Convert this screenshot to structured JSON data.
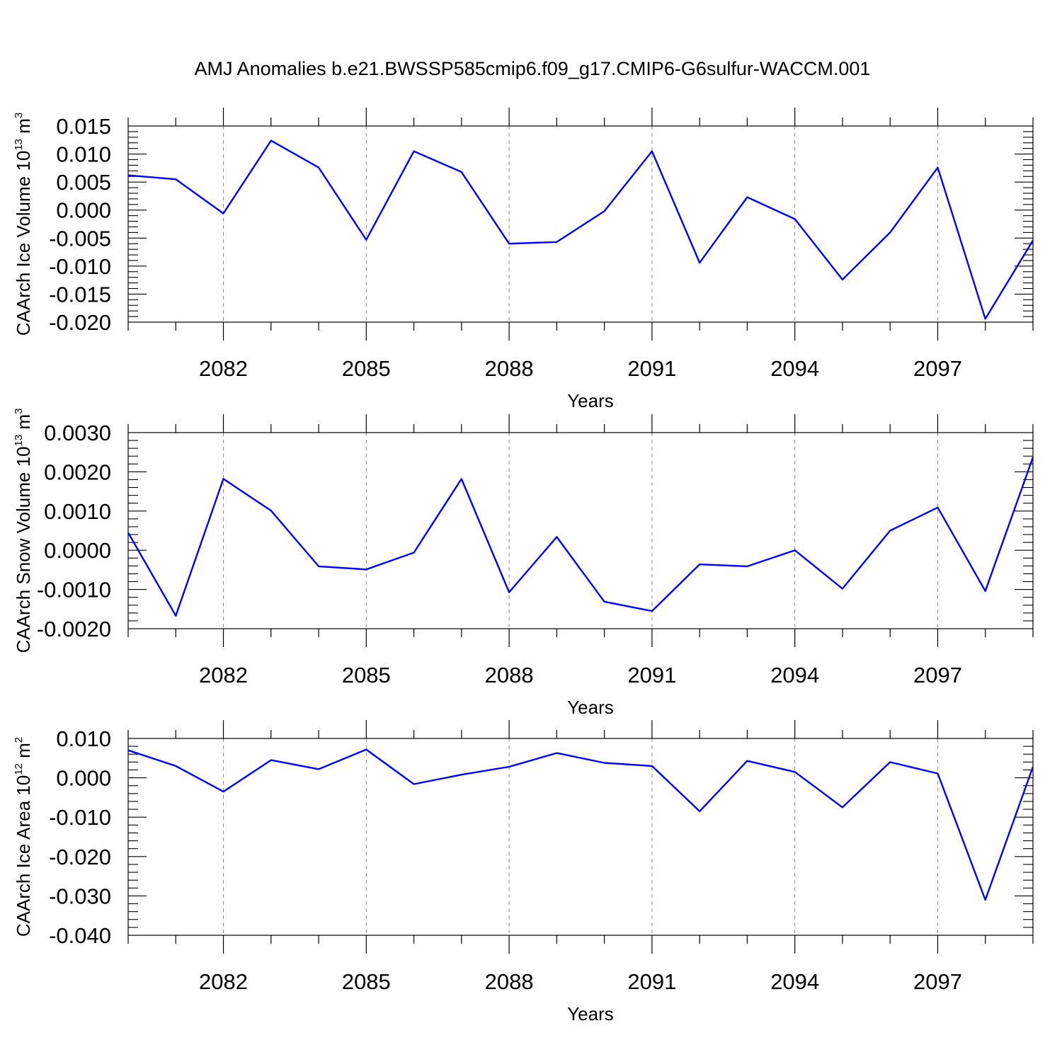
{
  "figure_title": "AMJ Anomalies b.e21.BWSSP585cmip6.f09_g17.CMIP6-G6sulfur-WACCM.001",
  "colors": {
    "line": "#0000ff",
    "axis": "#000000",
    "grid": "#888888",
    "background": "#ffffff"
  },
  "chart_data": [
    {
      "type": "line",
      "xlabel": "Years",
      "ylabel": {
        "text": "CAArch Ice Volume 10",
        "sup1": "13",
        "unit": " m",
        "sup2": "3"
      },
      "xlim": [
        2080,
        2099
      ],
      "ylim": [
        -0.02,
        0.015
      ],
      "ytick_values": [
        -0.02,
        -0.015,
        -0.01,
        -0.005,
        0,
        0.005,
        0.01,
        0.015
      ],
      "ytick_labels": [
        "-0.020",
        "-0.015",
        "-0.010",
        "-0.005",
        "0.000",
        "0.005",
        "0.010",
        "0.015"
      ],
      "xtick_values": [
        2082,
        2085,
        2088,
        2091,
        2094,
        2097
      ],
      "xtick_labels": [
        "2082",
        "2085",
        "2088",
        "2091",
        "2094",
        "2097"
      ],
      "grid": "vertical dashed at major x ticks",
      "x": [
        2080,
        2081,
        2082,
        2083,
        2084,
        2085,
        2086,
        2087,
        2088,
        2089,
        2090,
        2091,
        2092,
        2093,
        2094,
        2095,
        2096,
        2097,
        2098,
        2099
      ],
      "series": [
        {
          "values": [
            0.0062,
            0.0055,
            -0.0006,
            0.0124,
            0.0076,
            -0.0053,
            0.0105,
            0.0068,
            -0.006,
            -0.0057,
            -0.0002,
            0.0105,
            -0.0094,
            0.0023,
            -0.0016,
            -0.0124,
            -0.004,
            0.0076,
            -0.0194,
            -0.0054
          ]
        }
      ]
    },
    {
      "type": "line",
      "xlabel": "Years",
      "ylabel": {
        "text": "CAArch Snow Volume 10",
        "sup1": "13",
        "unit": " m",
        "sup2": "3"
      },
      "xlim": [
        2080,
        2099
      ],
      "ylim": [
        -0.002,
        0.003
      ],
      "ytick_values": [
        -0.002,
        -0.001,
        0,
        0.001,
        0.002,
        0.003
      ],
      "ytick_labels": [
        "-0.0020",
        "-0.0010",
        "0.0000",
        "0.0010",
        "0.0020",
        "0.0030"
      ],
      "xtick_values": [
        2082,
        2085,
        2088,
        2091,
        2094,
        2097
      ],
      "xtick_labels": [
        "2082",
        "2085",
        "2088",
        "2091",
        "2094",
        "2097"
      ],
      "grid": "vertical dashed at major x ticks",
      "x": [
        2080,
        2081,
        2082,
        2083,
        2084,
        2085,
        2086,
        2087,
        2088,
        2089,
        2090,
        2091,
        2092,
        2093,
        2094,
        2095,
        2096,
        2097,
        2098,
        2099
      ],
      "series": [
        {
          "values": [
            0.00045,
            -0.00167,
            0.00182,
            0.00101,
            -0.00041,
            -0.00049,
            -6e-05,
            0.00182,
            -0.00107,
            0.00034,
            -0.00131,
            -0.00155,
            -0.00036,
            -0.00041,
            0.0,
            -0.00098,
            0.0005,
            0.00109,
            -0.00104,
            0.00237
          ]
        }
      ]
    },
    {
      "type": "line",
      "xlabel": "Years",
      "ylabel": {
        "text": "CAArch Ice Area 10",
        "sup1": "12",
        "unit": " m",
        "sup2": "2"
      },
      "xlim": [
        2080,
        2099
      ],
      "ylim": [
        -0.04,
        0.01
      ],
      "ytick_values": [
        -0.04,
        -0.03,
        -0.02,
        -0.01,
        0,
        0.01
      ],
      "ytick_labels": [
        "-0.040",
        "-0.030",
        "-0.020",
        "-0.010",
        "0.000",
        "0.010"
      ],
      "xtick_values": [
        2082,
        2085,
        2088,
        2091,
        2094,
        2097
      ],
      "xtick_labels": [
        "2082",
        "2085",
        "2088",
        "2091",
        "2094",
        "2097"
      ],
      "grid": "vertical dashed at major x ticks",
      "x": [
        2080,
        2081,
        2082,
        2083,
        2084,
        2085,
        2086,
        2087,
        2088,
        2089,
        2090,
        2091,
        2092,
        2093,
        2094,
        2095,
        2096,
        2097,
        2098,
        2099
      ],
      "series": [
        {
          "values": [
            0.007,
            0.003,
            -0.0035,
            0.0045,
            0.0022,
            0.0072,
            -0.0016,
            0.0008,
            0.0028,
            0.0063,
            0.0038,
            0.003,
            -0.0085,
            0.0043,
            0.0015,
            -0.0075,
            0.004,
            0.0011,
            -0.031,
            0.0028
          ]
        }
      ]
    }
  ]
}
